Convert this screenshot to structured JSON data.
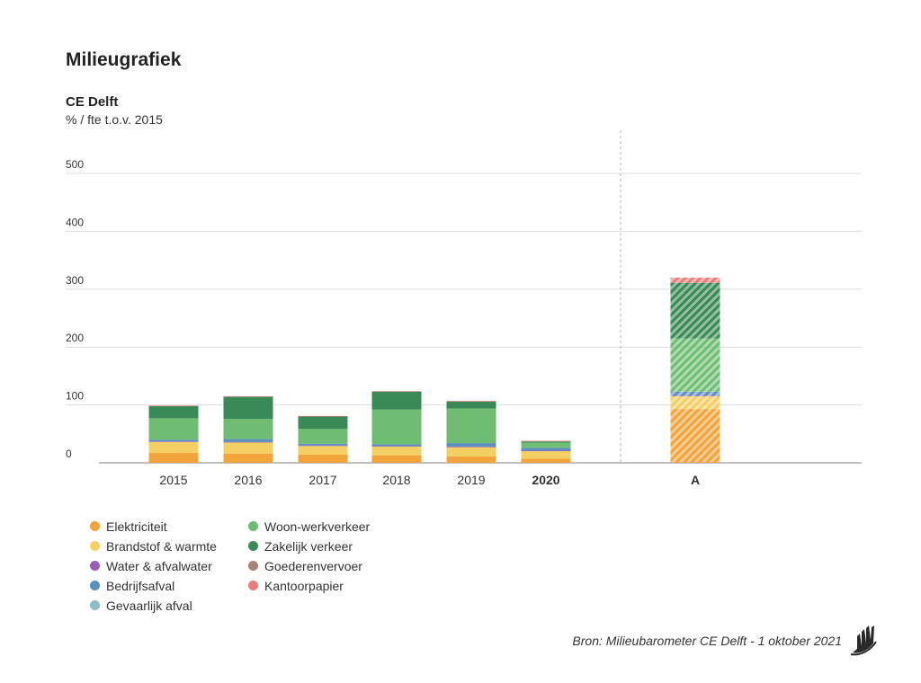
{
  "header": {
    "title": "Milieugrafiek",
    "subtitle": "CE Delft",
    "unit": "% / fte t.o.v. 2015"
  },
  "footer": {
    "source": "Bron: Milieubarometer CE Delft - 1 oktober 2021",
    "logo_icon": "milieubarometer-logo-icon"
  },
  "chart_data": {
    "type": "bar",
    "stacked": true,
    "categories": [
      "2015",
      "2016",
      "2017",
      "2018",
      "2019",
      "2020",
      "A"
    ],
    "bold_categories": [
      "2020",
      "A"
    ],
    "hatched_categories": [
      "A"
    ],
    "ylim": [
      0,
      575
    ],
    "yticks": [
      0,
      100,
      200,
      300,
      400,
      500
    ],
    "grid": true,
    "separator_before_category": "A",
    "series": [
      {
        "name": "Elektriciteit",
        "color": "#f2a33a",
        "values": [
          17,
          16,
          14,
          13,
          11,
          7,
          93
        ]
      },
      {
        "name": "Brandstof & warmte",
        "color": "#f4d064",
        "values": [
          19,
          19,
          15,
          15,
          16,
          13,
          22
        ]
      },
      {
        "name": "Water & afvalwater",
        "color": "#9c5bb5",
        "values": [
          1,
          1,
          1,
          1,
          1,
          1,
          1
        ]
      },
      {
        "name": "Bedrijfsafval",
        "color": "#5b8fbd",
        "values": [
          3,
          5,
          3,
          3,
          6,
          5,
          7
        ]
      },
      {
        "name": "Gevaarlijk afval",
        "color": "#8bbcc7",
        "values": [
          0,
          0,
          0,
          0,
          0,
          0,
          0
        ]
      },
      {
        "name": "Woon-werkverkeer",
        "color": "#6fbd72",
        "values": [
          37,
          35,
          26,
          60,
          60,
          9,
          92
        ]
      },
      {
        "name": "Zakelijk verkeer",
        "color": "#3a8a57",
        "values": [
          21,
          38,
          21,
          31,
          12,
          2,
          96
        ]
      },
      {
        "name": "Goederenvervoer",
        "color": "#a88474",
        "values": [
          0,
          0,
          0,
          0,
          0,
          0,
          0
        ]
      },
      {
        "name": "Kantoorpapier",
        "color": "#e87d7b",
        "values": [
          1,
          1,
          1,
          1,
          1,
          1,
          9
        ]
      }
    ]
  }
}
